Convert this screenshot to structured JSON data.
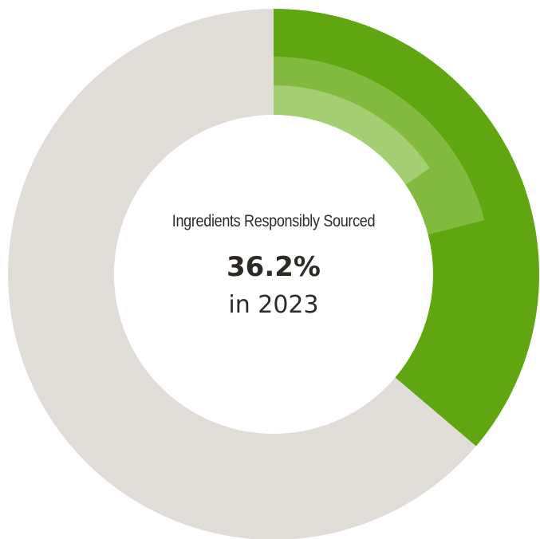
{
  "chart_data": {
    "type": "pie",
    "title": "Ingredients Responsibly Sourced",
    "value_label": "36.2%",
    "year_label": "in 2023",
    "rings": [
      {
        "level": "outer",
        "value": 0.362,
        "color": "#5fa611"
      },
      {
        "level": "middle",
        "value": 0.21,
        "color": "#82b93f"
      },
      {
        "level": "inner",
        "value": 0.155,
        "color": "#a4ce72"
      }
    ],
    "track_color": "#e0ddd9"
  }
}
